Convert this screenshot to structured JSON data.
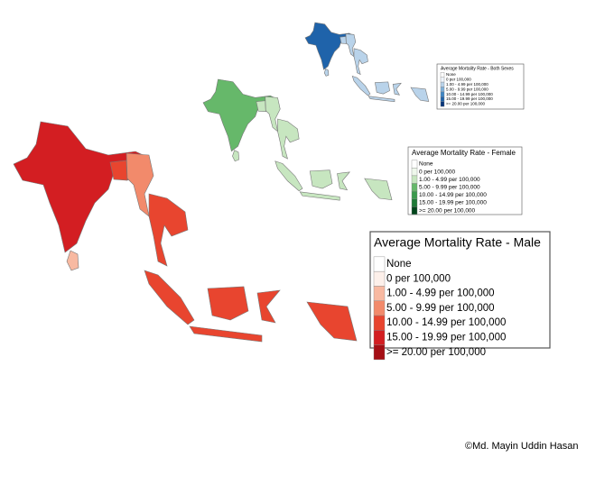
{
  "legends": [
    {
      "title": "Average Mortality Rate - Both Sexes",
      "items": [
        "None",
        "0 per 100,000",
        "1.00 - 4.99 per 100,000",
        "5.00 - 9.99 per 100,000",
        "10.00 - 14.99 per 100,000",
        "15.00 - 19.99 per 100,000",
        ">= 20.00 per 100,000"
      ],
      "colors": [
        "#ffffff",
        "#eef4fb",
        "#b9d3ea",
        "#7fb0d9",
        "#3f86c4",
        "#1f63aa",
        "#08367a"
      ]
    },
    {
      "title": "Average Mortality Rate - Female",
      "items": [
        "None",
        "0 per 100,000",
        "1.00 - 4.99 per 100,000",
        "5.00 - 9.99 per 100,000",
        "10.00 - 14.99 per 100,000",
        "15.00 - 19.99 per 100,000",
        ">= 20.00 per 100,000"
      ],
      "colors": [
        "#ffffff",
        "#eff8ec",
        "#c7e6c0",
        "#66b86a",
        "#3b9a4d",
        "#1e7a37",
        "#00451a"
      ]
    },
    {
      "title": "Average Mortality Rate - Male",
      "items": [
        "None",
        "0 per 100,000",
        "1.00 - 4.99 per 100,000",
        "5.00 - 9.99 per 100,000",
        "10.00 - 14.99 per 100,000",
        "15.00 - 19.99 per 100,000",
        ">= 20.00 per 100,000"
      ],
      "colors": [
        "#ffffff",
        "#fdf0ea",
        "#f8b9a1",
        "#f28a6b",
        "#e8452f",
        "#d31e22",
        "#a50f15"
      ]
    }
  ],
  "credit": "©Md. Mayin Uddin Hasan"
}
